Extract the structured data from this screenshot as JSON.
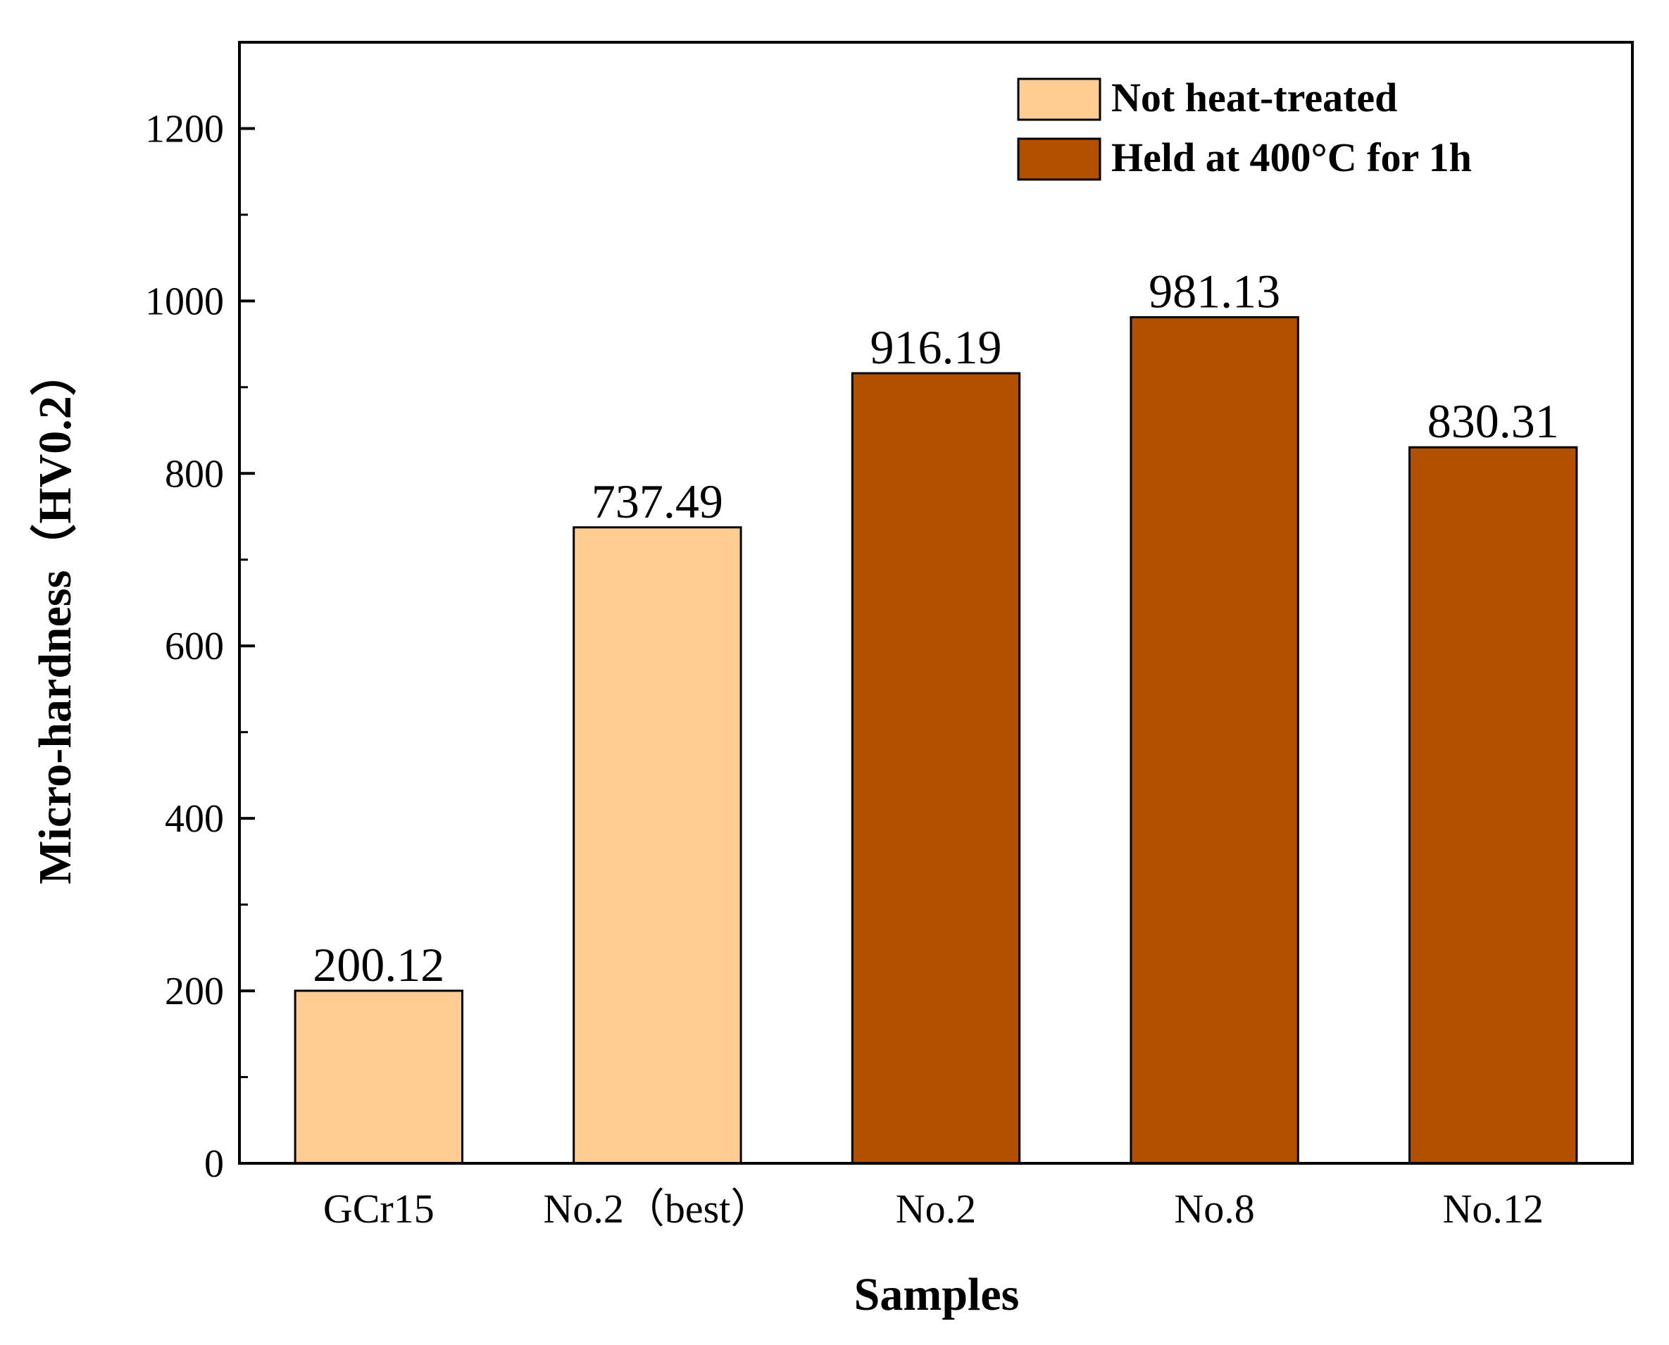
{
  "chart_data": {
    "type": "bar",
    "title": "",
    "xlabel": "Samples",
    "ylabel": "Micro-hardness（HV0.2）",
    "ylim": [
      0,
      1300
    ],
    "yticks": [
      0,
      200,
      400,
      600,
      800,
      1000,
      1200
    ],
    "ytick_labels": [
      "0",
      "200",
      "400",
      "600",
      "800",
      "1000",
      "1200"
    ],
    "grid": false,
    "legend_position": "top-right",
    "categories": [
      "GCr15",
      "No.2（best）",
      "No.2",
      "No.8",
      "No.12"
    ],
    "values": [
      200.12,
      737.49,
      916.19,
      981.13,
      830.31
    ],
    "value_labels": [
      "200.12",
      "737.49",
      "916.19",
      "981.13",
      "830.31"
    ],
    "bar_series": [
      0,
      0,
      1,
      1,
      1
    ],
    "series": [
      {
        "name": "Not heat-treated",
        "color": "#FFCC91"
      },
      {
        "name": "Held at 400°C for 1h",
        "color": "#B25000"
      }
    ]
  }
}
